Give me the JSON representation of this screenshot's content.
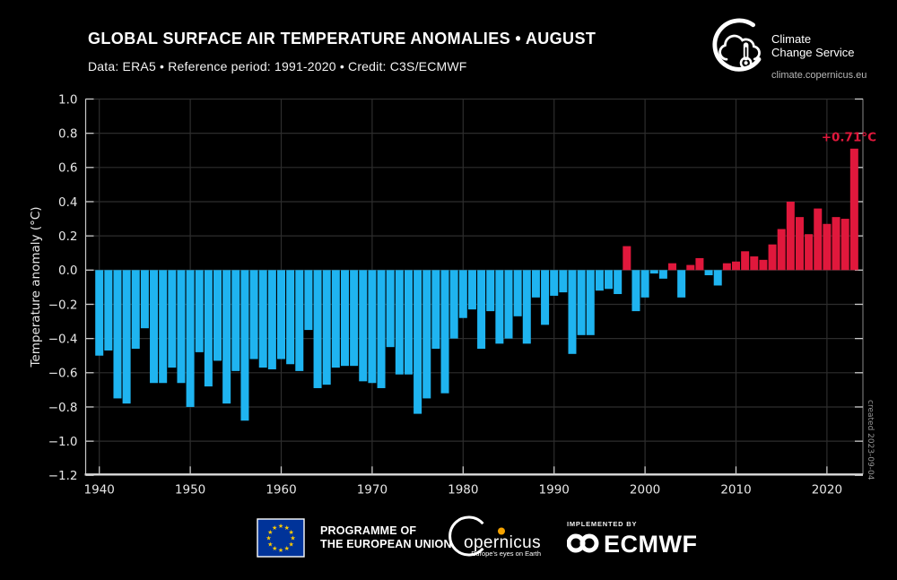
{
  "header": {
    "title": "GLOBAL SURFACE AIR TEMPERATURE ANOMALIES • AUGUST",
    "subtitle": "Data: ERA5 • Reference period: 1991-2020 • Credit: C3S/ECMWF"
  },
  "brand": {
    "name_line1": "Climate",
    "name_line2": "Change Service",
    "url": "climate.copernicus.eu"
  },
  "chart_data": {
    "type": "bar",
    "title": "GLOBAL SURFACE AIR TEMPERATURE ANOMALIES • AUGUST",
    "ylabel": "Temperature anomaly (°C)",
    "ylim": [
      -1.2,
      1.0
    ],
    "yticks": [
      1.0,
      0.8,
      0.6,
      0.4,
      0.2,
      0.0,
      -0.2,
      -0.4,
      -0.6,
      -0.8,
      -1.0,
      -1.2
    ],
    "xticks": [
      1940,
      1950,
      1960,
      1970,
      1980,
      1990,
      2000,
      2010,
      2020
    ],
    "grid": true,
    "annotation": {
      "text": "+0.71°C",
      "year": 2023
    },
    "watermark": "created 2023-09-04",
    "colors": {
      "positive": "#E0183C",
      "negative": "#1FB4F0",
      "grid": "#2D2D2D",
      "axis": "#C9C9C9",
      "tick_label": "#E6E6E6",
      "background": "#000000"
    },
    "years": [
      1940,
      1941,
      1942,
      1943,
      1944,
      1945,
      1946,
      1947,
      1948,
      1949,
      1950,
      1951,
      1952,
      1953,
      1954,
      1955,
      1956,
      1957,
      1958,
      1959,
      1960,
      1961,
      1962,
      1963,
      1964,
      1965,
      1966,
      1967,
      1968,
      1969,
      1970,
      1971,
      1972,
      1973,
      1974,
      1975,
      1976,
      1977,
      1978,
      1979,
      1980,
      1981,
      1982,
      1983,
      1984,
      1985,
      1986,
      1987,
      1988,
      1989,
      1990,
      1991,
      1992,
      1993,
      1994,
      1995,
      1996,
      1997,
      1998,
      1999,
      2000,
      2001,
      2002,
      2003,
      2004,
      2005,
      2006,
      2007,
      2008,
      2009,
      2010,
      2011,
      2012,
      2013,
      2014,
      2015,
      2016,
      2017,
      2018,
      2019,
      2020,
      2021,
      2022,
      2023
    ],
    "values": [
      -0.5,
      -0.47,
      -0.75,
      -0.78,
      -0.46,
      -0.34,
      -0.66,
      -0.66,
      -0.57,
      -0.66,
      -0.8,
      -0.48,
      -0.68,
      -0.53,
      -0.78,
      -0.59,
      -0.88,
      -0.52,
      -0.57,
      -0.58,
      -0.52,
      -0.55,
      -0.59,
      -0.35,
      -0.69,
      -0.67,
      -0.57,
      -0.56,
      -0.56,
      -0.65,
      -0.66,
      -0.69,
      -0.45,
      -0.61,
      -0.61,
      -0.84,
      -0.75,
      -0.46,
      -0.72,
      -0.4,
      -0.28,
      -0.23,
      -0.46,
      -0.24,
      -0.43,
      -0.4,
      -0.27,
      -0.43,
      -0.16,
      -0.32,
      -0.15,
      -0.13,
      -0.49,
      -0.38,
      -0.38,
      -0.12,
      -0.11,
      -0.14,
      0.14,
      -0.24,
      -0.16,
      -0.02,
      -0.05,
      0.04,
      -0.16,
      0.03,
      0.07,
      -0.03,
      -0.09,
      0.04,
      0.05,
      0.11,
      0.08,
      0.06,
      0.15,
      0.24,
      0.4,
      0.31,
      0.21,
      0.36,
      0.27,
      0.31,
      0.3,
      0.71
    ]
  },
  "footer": {
    "eu_label_line1": "PROGRAMME OF",
    "eu_label_line2": "THE EUROPEAN UNION",
    "copernicus_name": "Copernicus",
    "copernicus_tagline": "Europe's eyes on Earth",
    "implemented_by": "IMPLEMENTED BY",
    "ecmwf_label": "ECMWF"
  }
}
